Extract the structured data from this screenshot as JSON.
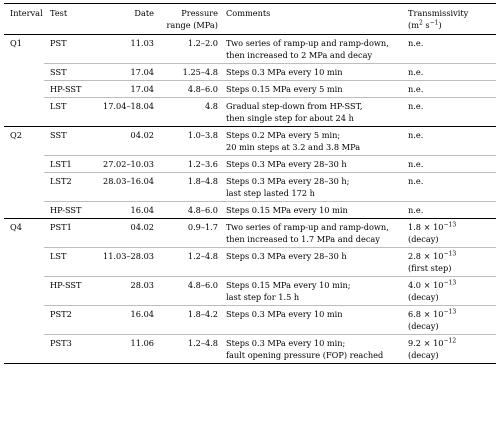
{
  "headers": {
    "interval": "Interval",
    "test": "Test",
    "date": "Date",
    "pressure_1": "Pressure",
    "pressure_2": "range (MPa)",
    "comments": "Comments",
    "trans_1": "Transmissivity",
    "trans_2_pre": "(m",
    "trans_2_exp1": "2",
    "trans_2_mid": " s",
    "trans_2_exp2": "−1",
    "trans_2_post": ")"
  },
  "rows": [
    {
      "interval": "Q1",
      "test": "PST",
      "date": "11.03",
      "pressure": "1.2–2.0",
      "c1": "Two series of ramp-up and ramp-down,",
      "c2": "then increased to 2 MPa and decay",
      "t_text": "n.e."
    },
    {
      "interval": "",
      "test": "SST",
      "date": "17.04",
      "pressure": "1.25–4.8",
      "c1": "Steps 0.3 MPa every 10 min",
      "c2": "",
      "t_text": "n.e."
    },
    {
      "interval": "",
      "test": "HP-SST",
      "date": "17.04",
      "pressure": "4.8–6.0",
      "c1": "Steps 0.15 MPa every 5 min",
      "c2": "",
      "t_text": "n.e."
    },
    {
      "interval": "",
      "test": "LST",
      "date": "17.04–18.04",
      "pressure": "4.8",
      "c1": "Gradual step-down from HP-SST,",
      "c2": "then single step for about 24 h",
      "t_text": "n.e."
    },
    {
      "interval": "Q2",
      "test": "SST",
      "date": "04.02",
      "pressure": "1.0–3.8",
      "c1": "Steps 0.2 MPa every 5 min;",
      "c2": "20 min steps at 3.2 and 3.8 MPa",
      "t_text": "n.e."
    },
    {
      "interval": "",
      "test": "LST1",
      "date": "27.02–10.03",
      "pressure": "1.2–3.6",
      "c1": "Steps 0.3 MPa every 28–30 h",
      "c2": "",
      "t_text": "n.e."
    },
    {
      "interval": "",
      "test": "LST2",
      "date": "28.03–16.04",
      "pressure": "1.8–4.8",
      "c1": "Steps 0.3 MPa every 28–30 h;",
      "c2": "last step lasted 172 h",
      "t_text": "n.e."
    },
    {
      "interval": "",
      "test": "HP-SST",
      "date": "16.04",
      "pressure": "4.8–6.0",
      "c1": "Steps 0.15 MPa every 10 min",
      "c2": "",
      "t_text": "n.e."
    },
    {
      "interval": "Q4",
      "test": "PST1",
      "date": "04.02",
      "pressure": "0.9–1.7",
      "c1": "Two series of ramp-up and ramp-down,",
      "c2": "then increased to 1.7 MPa and decay",
      "t_base": "1.8 × 10",
      "t_exp": "−13",
      "t2": "(decay)"
    },
    {
      "interval": "",
      "test": "LST",
      "date": "11.03–28.03",
      "pressure": "1.2–4.8",
      "c1": "Steps 0.3 MPa every 28–30 h",
      "c2": "",
      "t_base": "2.8 × 10",
      "t_exp": "−13",
      "t2": "(first step)"
    },
    {
      "interval": "",
      "test": "HP-SST",
      "date": "28.03",
      "pressure": "4.8–6.0",
      "c1": "Steps 0.15 MPa every 10 min;",
      "c2": "last step for 1.5 h",
      "t_base": "4.0 × 10",
      "t_exp": "−13",
      "t2": "(decay)"
    },
    {
      "interval": "",
      "test": "PST2",
      "date": "16.04",
      "pressure": "1.8–4.2",
      "c1": "Steps 0.3 MPa every 10 min",
      "c2": "",
      "t_base": "6.8 × 10",
      "t_exp": "−13",
      "t2": "(decay)"
    },
    {
      "interval": "",
      "test": "PST3",
      "date": "11.06",
      "pressure": "1.2–4.8",
      "c1": "Steps 0.3 MPa every 10 min;",
      "c2": "fault opening pressure (FOP) reached",
      "t_base": "9.2 × 10",
      "t_exp": "−12",
      "t2": "(decay)"
    }
  ]
}
